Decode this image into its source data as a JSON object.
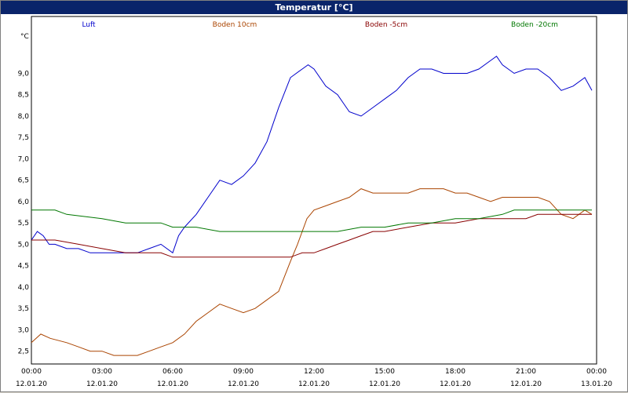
{
  "window": {
    "title": "Temperatur [°C]"
  },
  "chart_data": {
    "type": "line",
    "title": "Temperatur [°C]",
    "ylabel": "°C",
    "xlabel": "",
    "ylim": [
      2.2,
      10.0
    ],
    "y_ticks": [
      "2,5",
      "3,0",
      "3,5",
      "4,0",
      "4,5",
      "5,0",
      "5,5",
      "6,0",
      "6,5",
      "7,0",
      "7,5",
      "8,0",
      "8,5",
      "9,0"
    ],
    "y_tick_values": [
      2.5,
      3.0,
      3.5,
      4.0,
      4.5,
      5.0,
      5.5,
      6.0,
      6.5,
      7.0,
      7.5,
      8.0,
      8.5,
      9.0
    ],
    "x_ticks": [
      {
        "time": "00:00",
        "date": "12.01.20"
      },
      {
        "time": "03:00",
        "date": "12.01.20"
      },
      {
        "time": "06:00",
        "date": "12.01.20"
      },
      {
        "time": "09:00",
        "date": "12.01.20"
      },
      {
        "time": "12:00",
        "date": "12.01.20"
      },
      {
        "time": "15:00",
        "date": "12.01.20"
      },
      {
        "time": "18:00",
        "date": "12.01.20"
      },
      {
        "time": "21:00",
        "date": "12.01.20"
      },
      {
        "time": "00:00",
        "date": "13.01.20"
      }
    ],
    "grid": true,
    "legend_placement": "top",
    "series": [
      {
        "name": "Luft",
        "color": "#0000cc",
        "x": [
          0,
          0.25,
          0.5,
          0.75,
          1,
          1.5,
          2,
          2.5,
          3,
          3.5,
          4,
          4.5,
          5,
          5.5,
          6,
          6.25,
          6.5,
          7,
          7.5,
          8,
          8.5,
          9,
          9.5,
          10,
          10.5,
          11,
          11.5,
          11.75,
          12,
          12.5,
          13,
          13.25,
          13.5,
          14,
          14.5,
          15,
          15.5,
          16,
          16.5,
          17,
          17.5,
          18,
          18.5,
          19,
          19.5,
          19.75,
          20,
          20.5,
          21,
          21.5,
          22,
          22.5,
          23,
          23.5,
          23.8
        ],
        "y": [
          5.1,
          5.3,
          5.2,
          5.0,
          5.0,
          4.9,
          4.9,
          4.8,
          4.8,
          4.8,
          4.8,
          4.8,
          4.9,
          5.0,
          4.8,
          5.2,
          5.4,
          5.7,
          6.1,
          6.5,
          6.4,
          6.6,
          6.9,
          7.4,
          8.2,
          8.9,
          9.1,
          9.2,
          9.1,
          8.7,
          8.5,
          8.3,
          8.1,
          8.0,
          8.2,
          8.4,
          8.6,
          8.9,
          9.1,
          9.1,
          9.0,
          9.0,
          9.0,
          9.1,
          9.3,
          9.4,
          9.2,
          9.0,
          9.1,
          9.1,
          8.9,
          8.6,
          8.7,
          8.9,
          8.6
        ]
      },
      {
        "name": "Boden 10cm",
        "color": "#aa4400",
        "x": [
          0,
          0.4,
          0.8,
          1.5,
          2,
          2.5,
          3,
          3.5,
          4,
          4.5,
          5,
          5.5,
          6,
          6.5,
          7,
          7.5,
          8,
          8.5,
          9,
          9.5,
          10,
          10.5,
          11,
          11.3,
          11.7,
          12,
          12.5,
          13,
          13.5,
          14,
          14.5,
          15,
          15.5,
          16,
          16.5,
          17,
          17.5,
          18,
          18.5,
          19,
          19.5,
          20,
          20.5,
          21,
          21.5,
          22,
          22.5,
          23,
          23.5,
          23.8
        ],
        "y": [
          2.7,
          2.9,
          2.8,
          2.7,
          2.6,
          2.5,
          2.5,
          2.4,
          2.4,
          2.4,
          2.5,
          2.6,
          2.7,
          2.9,
          3.2,
          3.4,
          3.6,
          3.5,
          3.4,
          3.5,
          3.7,
          3.9,
          4.6,
          5.0,
          5.6,
          5.8,
          5.9,
          6.0,
          6.1,
          6.3,
          6.2,
          6.2,
          6.2,
          6.2,
          6.3,
          6.3,
          6.3,
          6.2,
          6.2,
          6.1,
          6.0,
          6.1,
          6.1,
          6.1,
          6.1,
          6.0,
          5.7,
          5.6,
          5.8,
          5.7
        ]
      },
      {
        "name": "Boden -5cm",
        "color": "#880000",
        "x": [
          0,
          1,
          2,
          3,
          4,
          5,
          5.5,
          6,
          7,
          8,
          9,
          10,
          11,
          11.5,
          12,
          12.5,
          13,
          13.5,
          14,
          14.5,
          15,
          16,
          17,
          18,
          19,
          20,
          21,
          21.5,
          22,
          23,
          23.8
        ],
        "y": [
          5.1,
          5.1,
          5.0,
          4.9,
          4.8,
          4.8,
          4.8,
          4.7,
          4.7,
          4.7,
          4.7,
          4.7,
          4.7,
          4.8,
          4.8,
          4.9,
          5.0,
          5.1,
          5.2,
          5.3,
          5.3,
          5.4,
          5.5,
          5.5,
          5.6,
          5.6,
          5.6,
          5.7,
          5.7,
          5.7,
          5.7
        ]
      },
      {
        "name": "Boden -20cm",
        "color": "#007700",
        "x": [
          0,
          1,
          1.5,
          3,
          4,
          5,
          5.5,
          6,
          7,
          8,
          9,
          10,
          11,
          12,
          13,
          14,
          15,
          16,
          17,
          18,
          19,
          20,
          20.5,
          21,
          22,
          23,
          23.8
        ],
        "y": [
          5.8,
          5.8,
          5.7,
          5.6,
          5.5,
          5.5,
          5.5,
          5.4,
          5.4,
          5.3,
          5.3,
          5.3,
          5.3,
          5.3,
          5.3,
          5.4,
          5.4,
          5.5,
          5.5,
          5.6,
          5.6,
          5.7,
          5.8,
          5.8,
          5.8,
          5.8,
          5.8
        ]
      }
    ]
  }
}
